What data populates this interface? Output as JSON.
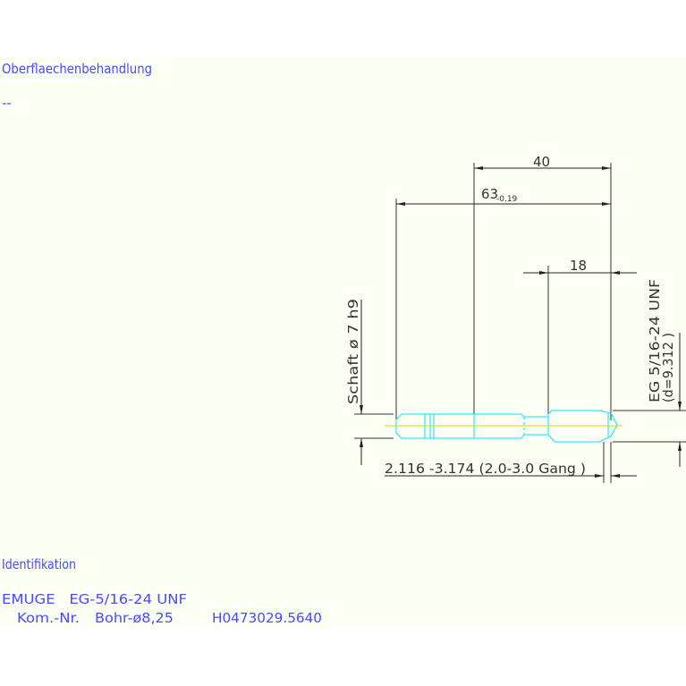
{
  "header": {
    "surface_label": "Oberflaechenbehandlung",
    "surface_value": "--"
  },
  "drawing": {
    "dim_thread_to_end": "40",
    "dim_total_length": "63",
    "dim_total_tolerance": "-0.19",
    "dim_thread_length": "18",
    "shank_label": "Schaft  ø 7 h9",
    "thread_label": "EG 5/16-24 UNF",
    "thread_diameter": "(d=9.312 )",
    "chamfer_label": "2.116  -3.174 (2.0-3.0 Gang  )",
    "colors": {
      "tool_outline": "#00e5ff",
      "centerline": "#e8d000",
      "dimension": "#333333",
      "text": "#4a4aff"
    }
  },
  "footer": {
    "ident_label": "Identifikation",
    "line1": "EMUGE   EG-5/16-24 UNF",
    "line2_a": "Kom.-Nr.",
    "line2_b": "Bohr-ø8,25",
    "line2_c": "H0473029.5640"
  }
}
